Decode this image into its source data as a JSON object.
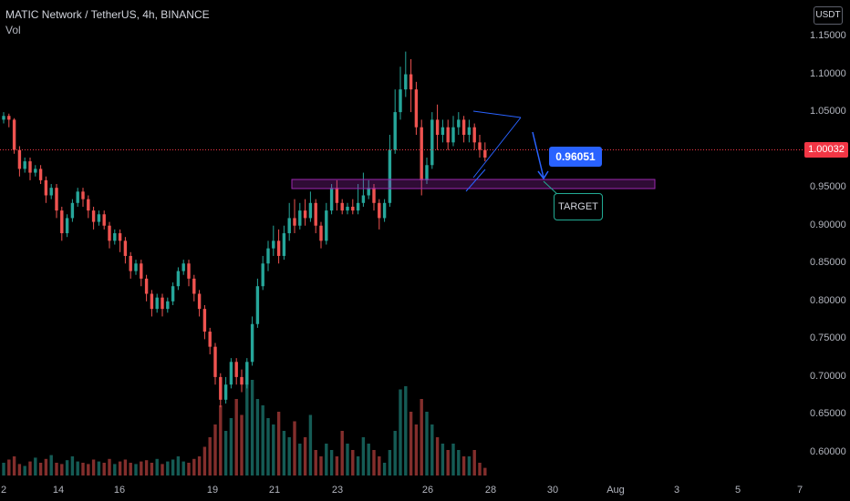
{
  "header": {
    "title": "MATIC Network / TetherUS, 4h, BINANCE",
    "indicator": "Vol"
  },
  "toolbar": {
    "currency": "USDT"
  },
  "price_axis": {
    "labels": [
      "1.15000",
      "1.10000",
      "1.05000",
      "1.00000",
      "0.95000",
      "0.90000",
      "0.85000",
      "0.80000",
      "0.75000",
      "0.70000",
      "0.65000",
      "0.60000"
    ],
    "current_price": "1.00032",
    "current_color": "#f23645"
  },
  "time_axis": {
    "labels": [
      "2",
      "14",
      "16",
      "19",
      "21",
      "23",
      "26",
      "28",
      "30",
      "Aug",
      "3",
      "5",
      "7"
    ]
  },
  "annotations": {
    "price_callout": "0.96051",
    "target_label": "TARGET",
    "support_zone": [
      0.945,
      0.958
    ]
  },
  "colors": {
    "up": "#26a69a",
    "down": "#ef5350",
    "zone_stroke": "#9c27b0",
    "arrow": "#2962ff"
  },
  "chart_data": {
    "type": "candlestick",
    "symbol": "MATIC Network / TetherUS",
    "interval": "4h",
    "exchange": "BINANCE",
    "ylim": [
      0.575,
      1.17
    ],
    "y_ticks": [
      1.15,
      1.1,
      1.05,
      1.0,
      0.95,
      0.9,
      0.85,
      0.8,
      0.75,
      0.7,
      0.65,
      0.6
    ],
    "candles": [
      [
        1.04,
        1.045,
        1.035,
        1.05
      ],
      [
        1.045,
        1.04,
        1.03,
        1.048
      ],
      [
        1.04,
        1.0,
        0.995,
        1.042
      ],
      [
        1.0,
        0.975,
        0.965,
        1.005
      ],
      [
        0.975,
        0.985,
        0.97,
        0.99
      ],
      [
        0.985,
        0.97,
        0.96,
        0.99
      ],
      [
        0.97,
        0.975,
        0.965,
        0.98
      ],
      [
        0.975,
        0.96,
        0.955,
        0.98
      ],
      [
        0.96,
        0.94,
        0.93,
        0.965
      ],
      [
        0.94,
        0.95,
        0.935,
        0.955
      ],
      [
        0.95,
        0.92,
        0.91,
        0.955
      ],
      [
        0.92,
        0.89,
        0.88,
        0.925
      ],
      [
        0.89,
        0.91,
        0.885,
        0.915
      ],
      [
        0.91,
        0.93,
        0.905,
        0.935
      ],
      [
        0.93,
        0.945,
        0.925,
        0.95
      ],
      [
        0.945,
        0.935,
        0.925,
        0.95
      ],
      [
        0.935,
        0.92,
        0.91,
        0.94
      ],
      [
        0.92,
        0.905,
        0.895,
        0.925
      ],
      [
        0.905,
        0.915,
        0.9,
        0.92
      ],
      [
        0.915,
        0.9,
        0.895,
        0.92
      ],
      [
        0.9,
        0.88,
        0.87,
        0.905
      ],
      [
        0.88,
        0.89,
        0.875,
        0.895
      ],
      [
        0.89,
        0.88,
        0.865,
        0.895
      ],
      [
        0.88,
        0.86,
        0.85,
        0.885
      ],
      [
        0.86,
        0.84,
        0.83,
        0.865
      ],
      [
        0.84,
        0.85,
        0.835,
        0.855
      ],
      [
        0.85,
        0.83,
        0.82,
        0.855
      ],
      [
        0.83,
        0.81,
        0.8,
        0.835
      ],
      [
        0.81,
        0.79,
        0.78,
        0.815
      ],
      [
        0.79,
        0.805,
        0.785,
        0.81
      ],
      [
        0.805,
        0.79,
        0.78,
        0.81
      ],
      [
        0.79,
        0.8,
        0.785,
        0.805
      ],
      [
        0.8,
        0.82,
        0.795,
        0.825
      ],
      [
        0.82,
        0.84,
        0.815,
        0.845
      ],
      [
        0.84,
        0.85,
        0.835,
        0.855
      ],
      [
        0.85,
        0.83,
        0.82,
        0.855
      ],
      [
        0.83,
        0.81,
        0.8,
        0.835
      ],
      [
        0.81,
        0.79,
        0.78,
        0.815
      ],
      [
        0.79,
        0.76,
        0.75,
        0.795
      ],
      [
        0.76,
        0.74,
        0.73,
        0.765
      ],
      [
        0.74,
        0.7,
        0.69,
        0.745
      ],
      [
        0.7,
        0.67,
        0.66,
        0.705
      ],
      [
        0.67,
        0.69,
        0.665,
        0.7
      ],
      [
        0.69,
        0.72,
        0.685,
        0.725
      ],
      [
        0.72,
        0.7,
        0.69,
        0.725
      ],
      [
        0.7,
        0.69,
        0.68,
        0.71
      ],
      [
        0.69,
        0.72,
        0.685,
        0.725
      ],
      [
        0.72,
        0.77,
        0.715,
        0.78
      ],
      [
        0.77,
        0.82,
        0.765,
        0.83
      ],
      [
        0.82,
        0.85,
        0.815,
        0.86
      ],
      [
        0.85,
        0.87,
        0.84,
        0.88
      ],
      [
        0.87,
        0.88,
        0.86,
        0.9
      ],
      [
        0.88,
        0.86,
        0.85,
        0.895
      ],
      [
        0.86,
        0.89,
        0.855,
        0.9
      ],
      [
        0.89,
        0.91,
        0.88,
        0.93
      ],
      [
        0.91,
        0.9,
        0.89,
        0.935
      ],
      [
        0.9,
        0.92,
        0.895,
        0.93
      ],
      [
        0.92,
        0.91,
        0.9,
        0.935
      ],
      [
        0.91,
        0.93,
        0.905,
        0.945
      ],
      [
        0.93,
        0.9,
        0.89,
        0.935
      ],
      [
        0.9,
        0.88,
        0.87,
        0.905
      ],
      [
        0.88,
        0.92,
        0.875,
        0.93
      ],
      [
        0.92,
        0.95,
        0.915,
        0.955
      ],
      [
        0.95,
        0.93,
        0.92,
        0.96
      ],
      [
        0.93,
        0.92,
        0.915,
        0.935
      ],
      [
        0.92,
        0.925,
        0.915,
        0.93
      ],
      [
        0.925,
        0.92,
        0.915,
        0.935
      ],
      [
        0.92,
        0.93,
        0.915,
        0.955
      ],
      [
        0.93,
        0.94,
        0.925,
        0.97
      ],
      [
        0.94,
        0.95,
        0.935,
        0.96
      ],
      [
        0.95,
        0.93,
        0.92,
        0.955
      ],
      [
        0.93,
        0.91,
        0.895,
        0.935
      ],
      [
        0.91,
        0.93,
        0.905,
        0.935
      ],
      [
        0.93,
        1.0,
        0.925,
        1.02
      ],
      [
        1.0,
        1.05,
        0.995,
        1.08
      ],
      [
        1.05,
        1.08,
        1.04,
        1.11
      ],
      [
        1.08,
        1.1,
        1.07,
        1.13
      ],
      [
        1.1,
        1.08,
        1.05,
        1.12
      ],
      [
        1.08,
        1.03,
        1.02,
        1.09
      ],
      [
        1.03,
        0.96,
        0.94,
        1.04
      ],
      [
        0.96,
        0.98,
        0.955,
        0.99
      ],
      [
        0.98,
        1.04,
        0.975,
        1.05
      ],
      [
        1.04,
        1.02,
        1.0,
        1.06
      ],
      [
        1.02,
        1.03,
        1.01,
        1.04
      ],
      [
        1.03,
        1.01,
        1.0,
        1.04
      ],
      [
        1.01,
        1.03,
        1.005,
        1.045
      ],
      [
        1.03,
        1.04,
        1.02,
        1.05
      ],
      [
        1.04,
        1.02,
        1.01,
        1.045
      ],
      [
        1.02,
        1.03,
        1.01,
        1.04
      ],
      [
        1.03,
        1.01,
        1.0,
        1.035
      ],
      [
        1.01,
        1.0,
        0.99,
        1.02
      ],
      [
        1.0,
        0.99,
        0.985,
        1.01
      ]
    ],
    "volume": [
      0.02,
      0.025,
      0.03,
      0.018,
      0.015,
      0.022,
      0.028,
      0.02,
      0.026,
      0.032,
      0.02,
      0.018,
      0.024,
      0.03,
      0.022,
      0.02,
      0.018,
      0.025,
      0.022,
      0.02,
      0.026,
      0.018,
      0.022,
      0.025,
      0.02,
      0.018,
      0.022,
      0.024,
      0.02,
      0.026,
      0.018,
      0.022,
      0.025,
      0.03,
      0.022,
      0.02,
      0.026,
      0.03,
      0.045,
      0.06,
      0.08,
      0.11,
      0.07,
      0.09,
      0.12,
      0.095,
      0.16,
      0.15,
      0.12,
      0.11,
      0.09,
      0.08,
      0.1,
      0.07,
      0.06,
      0.085,
      0.05,
      0.06,
      0.095,
      0.04,
      0.03,
      0.05,
      0.04,
      0.03,
      0.07,
      0.05,
      0.04,
      0.03,
      0.06,
      0.05,
      0.04,
      0.03,
      0.02,
      0.04,
      0.07,
      0.135,
      0.14,
      0.1,
      0.08,
      0.12,
      0.1,
      0.08,
      0.06,
      0.05,
      0.04,
      0.05,
      0.04,
      0.03,
      0.03,
      0.04,
      0.02,
      0.012
    ]
  }
}
